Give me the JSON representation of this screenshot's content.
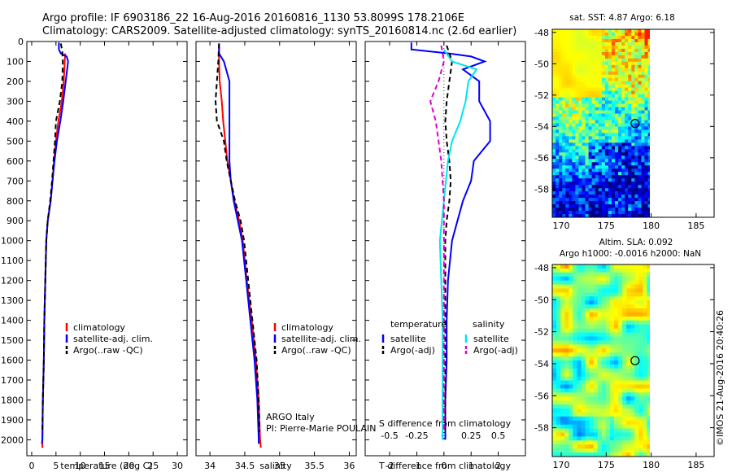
{
  "header": {
    "line1": "Argo profile: IF 6903186_22 16-Aug-2016 20160816_1130 53.8099S 178.2106E",
    "line2": "Climatology: CARS2009. Satellite-adjusted climatology: synTS_20160814.nc (2.6d earlier)"
  },
  "watermark": "©IMOS 21-Aug-2016 20:40:26",
  "colors": {
    "climatology": "#ff0000",
    "satellite_adj": "#0000ff",
    "argo": "#000000",
    "temp_satellite": "#0000ff",
    "temp_argo": "#000000",
    "sal_satellite": "#00e5ee",
    "sal_argo": "#e000d0"
  },
  "chart_data": [
    {
      "id": "temperature",
      "type": "line",
      "xlabel": "temperature (deg C)",
      "ylabel": "",
      "xlim": [
        -1,
        32
      ],
      "ylim": [
        2080,
        0
      ],
      "xticks": [
        "0",
        "5",
        "10",
        "15",
        "20",
        "25",
        "30"
      ],
      "xtick_values": [
        0,
        5,
        10,
        15,
        20,
        25,
        30
      ],
      "yticks": [
        "0",
        "100",
        "200",
        "300",
        "400",
        "500",
        "600",
        "700",
        "800",
        "900",
        "1000",
        "1100",
        "1200",
        "1300",
        "1400",
        "1500",
        "1600",
        "1700",
        "1800",
        "1900",
        "2000"
      ],
      "ytick_values": [
        0,
        100,
        200,
        300,
        400,
        500,
        600,
        700,
        800,
        900,
        1000,
        1100,
        1200,
        1300,
        1400,
        1500,
        1600,
        1700,
        1800,
        1900,
        2000
      ],
      "legend": [
        "climatology",
        "satellite-adj. clim.",
        "Argo(..raw -QC)"
      ],
      "series": [
        {
          "name": "climatology",
          "color_key": "climatology",
          "style": "solid",
          "values": [
            [
              6.9,
              60
            ],
            [
              6.8,
              100
            ],
            [
              6.6,
              200
            ],
            [
              6.2,
              300
            ],
            [
              5.5,
              400
            ],
            [
              5.0,
              500
            ],
            [
              4.6,
              600
            ],
            [
              4.3,
              700
            ],
            [
              3.9,
              800
            ],
            [
              3.3,
              900
            ],
            [
              3.0,
              1000
            ],
            [
              2.8,
              1200
            ],
            [
              2.6,
              1400
            ],
            [
              2.5,
              1600
            ],
            [
              2.3,
              1800
            ],
            [
              2.2,
              2000
            ],
            [
              2.2,
              2040
            ]
          ]
        },
        {
          "name": "satellite-adj. clim.",
          "color_key": "satellite_adj",
          "style": "solid",
          "values": [
            [
              5.6,
              5
            ],
            [
              5.6,
              40
            ],
            [
              6.0,
              60
            ],
            [
              7.2,
              75
            ],
            [
              7.5,
              100
            ],
            [
              7.0,
              200
            ],
            [
              6.5,
              300
            ],
            [
              5.9,
              400
            ],
            [
              5.2,
              500
            ],
            [
              4.7,
              600
            ],
            [
              4.3,
              700
            ],
            [
              3.9,
              800
            ],
            [
              3.3,
              900
            ],
            [
              3.0,
              1000
            ],
            [
              2.8,
              1200
            ],
            [
              2.6,
              1400
            ],
            [
              2.5,
              1600
            ],
            [
              2.3,
              1800
            ],
            [
              2.2,
              2000
            ],
            [
              2.1,
              2020
            ]
          ]
        },
        {
          "name": "Argo(..raw -QC)",
          "color_key": "argo",
          "style": "dashed",
          "values": [
            [
              6.0,
              10
            ],
            [
              6.3,
              50
            ],
            [
              6.4,
              100
            ],
            [
              6.3,
              200
            ],
            [
              5.8,
              300
            ],
            [
              5.0,
              400
            ],
            [
              4.8,
              500
            ],
            [
              4.5,
              600
            ],
            [
              4.2,
              700
            ],
            [
              3.8,
              800
            ],
            [
              3.3,
              900
            ],
            [
              3.0,
              1000
            ],
            [
              2.8,
              1200
            ],
            [
              2.6,
              1400
            ],
            [
              2.5,
              1600
            ],
            [
              2.3,
              1800
            ],
            [
              2.2,
              1960
            ]
          ]
        }
      ]
    },
    {
      "id": "salinity",
      "type": "line",
      "xlabel": "salinity",
      "ylabel": "",
      "xlim": [
        33.8,
        36.1
      ],
      "ylim": [
        2080,
        0
      ],
      "xticks": [
        "34",
        "34.5",
        "35",
        "35.5",
        "36"
      ],
      "xtick_values": [
        34,
        34.5,
        35,
        35.5,
        36
      ],
      "legend": [
        "climatology",
        "satellite-adj. clim.",
        "Argo(..raw -QC)"
      ],
      "annotations": [
        "ARGO Italy",
        "PI: Pierre-Marie POULAIN"
      ],
      "series": [
        {
          "name": "climatology",
          "color_key": "climatology",
          "style": "solid",
          "values": [
            [
              34.13,
              20
            ],
            [
              34.13,
              100
            ],
            [
              34.14,
              200
            ],
            [
              34.17,
              300
            ],
            [
              34.19,
              400
            ],
            [
              34.22,
              500
            ],
            [
              34.25,
              600
            ],
            [
              34.3,
              700
            ],
            [
              34.35,
              800
            ],
            [
              34.42,
              900
            ],
            [
              34.47,
              1000
            ],
            [
              34.53,
              1200
            ],
            [
              34.6,
              1400
            ],
            [
              34.66,
              1600
            ],
            [
              34.7,
              1800
            ],
            [
              34.72,
              2000
            ],
            [
              34.73,
              2040
            ]
          ]
        },
        {
          "name": "satellite-adj. clim.",
          "color_key": "satellite_adj",
          "style": "solid",
          "values": [
            [
              34.13,
              10
            ],
            [
              34.13,
              60
            ],
            [
              34.2,
              100
            ],
            [
              34.28,
              200
            ],
            [
              34.28,
              400
            ],
            [
              34.28,
              600
            ],
            [
              34.3,
              700
            ],
            [
              34.34,
              800
            ],
            [
              34.4,
              900
            ],
            [
              34.46,
              1000
            ],
            [
              34.52,
              1200
            ],
            [
              34.58,
              1400
            ],
            [
              34.64,
              1600
            ],
            [
              34.68,
              1800
            ],
            [
              34.7,
              2000
            ],
            [
              34.7,
              2020
            ]
          ]
        },
        {
          "name": "Argo(..raw -QC)",
          "color_key": "argo",
          "style": "dashed",
          "values": [
            [
              34.13,
              10
            ],
            [
              34.12,
              100
            ],
            [
              34.1,
              200
            ],
            [
              34.08,
              300
            ],
            [
              34.1,
              400
            ],
            [
              34.15,
              450
            ],
            [
              34.2,
              500
            ],
            [
              34.24,
              600
            ],
            [
              34.3,
              700
            ],
            [
              34.36,
              800
            ],
            [
              34.44,
              900
            ],
            [
              34.49,
              1000
            ],
            [
              34.55,
              1200
            ],
            [
              34.61,
              1400
            ],
            [
              34.67,
              1600
            ],
            [
              34.7,
              1800
            ],
            [
              34.71,
              1960
            ]
          ]
        }
      ]
    },
    {
      "id": "differences",
      "type": "line",
      "xlabel": "T difference from climatology",
      "xlabel_top": "S difference from climatology",
      "xlim": [
        -2.9,
        3.0
      ],
      "ylim": [
        2080,
        0
      ],
      "xticks": [
        "-2",
        "-1",
        "0",
        "1",
        "2"
      ],
      "xtick_values": [
        -2,
        -1,
        0,
        1,
        2
      ],
      "xticks_top": [
        "-0.5",
        "-0.25",
        "0",
        "0.25",
        "0.5"
      ],
      "xtick_top_values": [
        -2,
        -1,
        0,
        1,
        2
      ],
      "legend_headers": [
        "temperature",
        "salinity"
      ],
      "legend": [
        "satellite",
        "Argo(-adj)",
        "satellite",
        "Argo(-adj)"
      ],
      "series": [
        {
          "name": "satellite",
          "color_key": "temp_satellite",
          "style": "solid",
          "values": [
            [
              -1.2,
              5
            ],
            [
              -1.2,
              40
            ],
            [
              0.2,
              60
            ],
            [
              1.0,
              75
            ],
            [
              1.5,
              100
            ],
            [
              0.7,
              140
            ],
            [
              1.3,
              200
            ],
            [
              1.3,
              300
            ],
            [
              1.7,
              400
            ],
            [
              1.7,
              500
            ],
            [
              1.1,
              600
            ],
            [
              1.0,
              700
            ],
            [
              0.7,
              800
            ],
            [
              0.5,
              900
            ],
            [
              0.3,
              1000
            ],
            [
              0.15,
              1200
            ],
            [
              0.1,
              1400
            ],
            [
              0.1,
              1600
            ],
            [
              0.05,
              1800
            ],
            [
              0.05,
              2000
            ]
          ]
        },
        {
          "name": "Argo(-adj)",
          "color_key": "temp_argo",
          "style": "dashed",
          "values": [
            [
              0.1,
              20
            ],
            [
              0.3,
              100
            ],
            [
              0.2,
              200
            ],
            [
              0.1,
              300
            ],
            [
              0.05,
              400
            ],
            [
              0.1,
              500
            ],
            [
              0.2,
              600
            ],
            [
              0.25,
              700
            ],
            [
              0.2,
              800
            ],
            [
              0.1,
              900
            ],
            [
              0.05,
              1000
            ],
            [
              0.05,
              1200
            ],
            [
              0.05,
              1400
            ],
            [
              0.05,
              1600
            ],
            [
              0.05,
              1800
            ],
            [
              0.05,
              1960
            ]
          ]
        },
        {
          "name": "satellite",
          "color_key": "sal_satellite",
          "style": "solid",
          "values": [
            [
              0,
              40
            ],
            [
              0.3,
              100
            ],
            [
              1.2,
              140
            ],
            [
              0.9,
              200
            ],
            [
              0.8,
              300
            ],
            [
              0.6,
              400
            ],
            [
              0.3,
              500
            ],
            [
              0.15,
              600
            ],
            [
              0.0,
              800
            ],
            [
              -0.15,
              1000
            ],
            [
              -0.1,
              1200
            ],
            [
              -0.05,
              1400
            ],
            [
              -0.05,
              1600
            ],
            [
              -0.05,
              1800
            ],
            [
              -0.05,
              2000
            ]
          ]
        },
        {
          "name": "Argo(-adj)",
          "color_key": "sal_argo",
          "style": "dashed",
          "values": [
            [
              -0.1,
              20
            ],
            [
              0.0,
              100
            ],
            [
              -0.2,
              200
            ],
            [
              -0.5,
              300
            ],
            [
              -0.3,
              400
            ],
            [
              -0.2,
              500
            ],
            [
              -0.1,
              600
            ],
            [
              0.0,
              800
            ],
            [
              0.0,
              1000
            ],
            [
              0.0,
              1200
            ],
            [
              0.0,
              1400
            ],
            [
              0.0,
              1600
            ],
            [
              0.0,
              1800
            ],
            [
              0.0,
              1960
            ]
          ]
        }
      ]
    },
    {
      "id": "sst_map",
      "type": "heatmap",
      "title": "sat. SST: 4.87  Argo: 6.18",
      "xlim": [
        169,
        187
      ],
      "ylim": [
        -59.8,
        -47.8
      ],
      "xticks": [
        "170",
        "175",
        "180",
        "185"
      ],
      "xtick_values": [
        170,
        175,
        180,
        185
      ],
      "yticks": [
        "-48",
        "-50",
        "-52",
        "-54",
        "-56",
        "-58"
      ],
      "ytick_values": [
        -48,
        -50,
        -52,
        -54,
        -56,
        -58
      ],
      "data_extent_lon": [
        169,
        180
      ],
      "marker": [
        178.21,
        -53.81
      ]
    },
    {
      "id": "sla_map",
      "type": "heatmap",
      "title_line1": "Altim. SLA: 0.092",
      "title_line2": "Argo h1000: -0.0016 h2000: NaN",
      "xlim": [
        169,
        187
      ],
      "ylim": [
        -59.8,
        -47.8
      ],
      "xticks": [
        "170",
        "175",
        "180",
        "185"
      ],
      "xtick_values": [
        170,
        175,
        180,
        185
      ],
      "yticks": [
        "-48",
        "-50",
        "-52",
        "-54",
        "-56",
        "-58"
      ],
      "ytick_values": [
        -48,
        -50,
        -52,
        -54,
        -56,
        -58
      ],
      "data_extent_lon": [
        169,
        180
      ],
      "marker": [
        178.21,
        -53.81
      ]
    }
  ]
}
